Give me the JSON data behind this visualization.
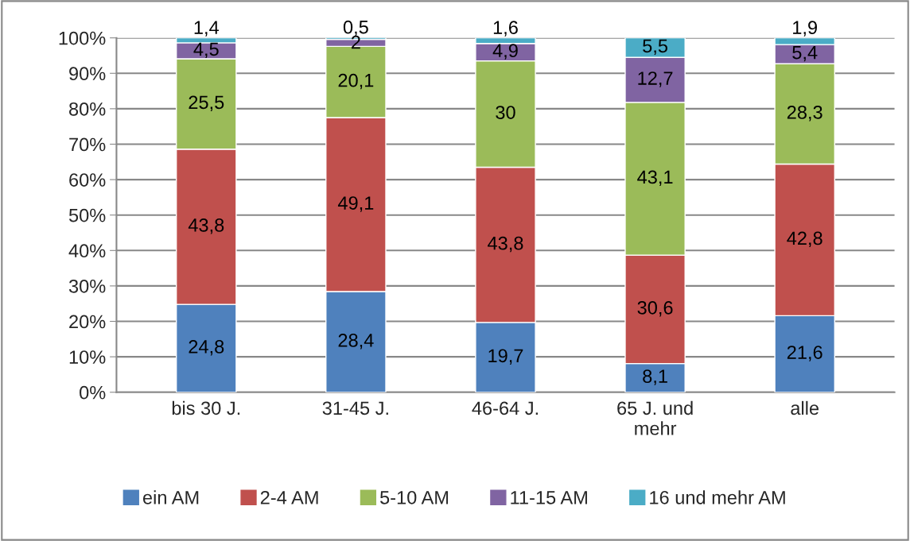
{
  "chart_data": {
    "type": "bar",
    "stacked": true,
    "categories": [
      "bis 30 J.",
      "31-45 J.",
      "46-64 J.",
      "65 J. und\nmehr",
      "alle"
    ],
    "series": [
      {
        "name": "ein AM",
        "color": "#4f81bd",
        "values": [
          24.8,
          28.4,
          19.7,
          8.1,
          21.6
        ],
        "value_labels": [
          "24,8",
          "28,4",
          "19,7",
          "8,1",
          "21,6"
        ]
      },
      {
        "name": "2-4 AM",
        "color": "#c0504d",
        "values": [
          43.8,
          49.1,
          43.8,
          30.6,
          42.8
        ],
        "value_labels": [
          "43,8",
          "49,1",
          "43,8",
          "30,6",
          "42,8"
        ]
      },
      {
        "name": "5-10 AM",
        "color": "#9bbb59",
        "values": [
          25.5,
          20.1,
          30,
          43.1,
          28.3
        ],
        "value_labels": [
          "25,5",
          "20,1",
          "30",
          "43,1",
          "28,3"
        ]
      },
      {
        "name": "11-15 AM",
        "color": "#8064a2",
        "values": [
          4.5,
          2,
          4.9,
          12.7,
          5.4
        ],
        "value_labels": [
          "4,5",
          "2",
          "4,9",
          "12,7",
          "5,4"
        ]
      },
      {
        "name": "16 und mehr AM",
        "color": "#4bacc6",
        "values": [
          1.4,
          0.5,
          1.6,
          5.5,
          1.9
        ],
        "value_labels": [
          "1,4",
          "0,5",
          "1,6",
          "5,5",
          "1,9"
        ]
      }
    ],
    "ylim": [
      0,
      100
    ],
    "yticks": [
      {
        "value": 0,
        "label": "0%"
      },
      {
        "value": 10,
        "label": "10%"
      },
      {
        "value": 20,
        "label": "20%"
      },
      {
        "value": 30,
        "label": "30%"
      },
      {
        "value": 40,
        "label": "40%"
      },
      {
        "value": 50,
        "label": "50%"
      },
      {
        "value": 60,
        "label": "60%"
      },
      {
        "value": 70,
        "label": "70%"
      },
      {
        "value": 80,
        "label": "80%"
      },
      {
        "value": 90,
        "label": "90%"
      },
      {
        "value": 100,
        "label": "100%"
      }
    ],
    "grid": "y",
    "legend": "bottom"
  }
}
